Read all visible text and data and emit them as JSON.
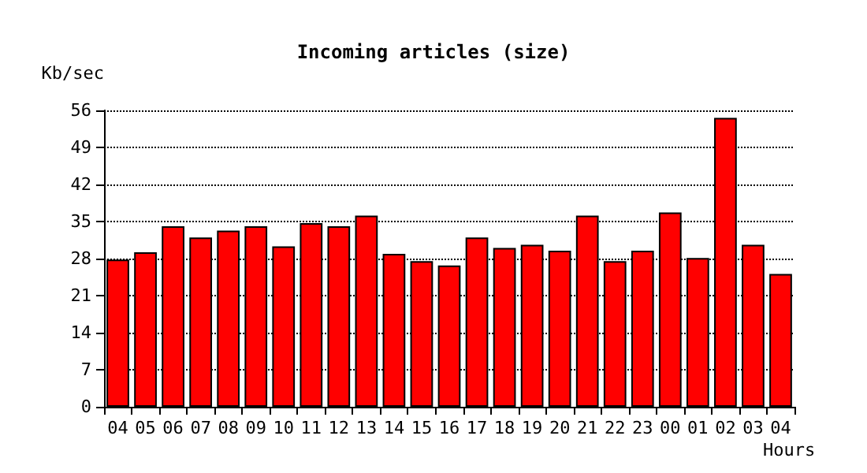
{
  "chart_data": {
    "type": "bar",
    "title": "Incoming articles (size)",
    "ylabel": "Kb/sec",
    "xlabel": "Hours",
    "categories": [
      "04",
      "05",
      "06",
      "07",
      "08",
      "09",
      "10",
      "11",
      "12",
      "13",
      "14",
      "15",
      "16",
      "17",
      "18",
      "19",
      "20",
      "21",
      "22",
      "23",
      "00",
      "01",
      "02",
      "03",
      "04"
    ],
    "values": [
      27.8,
      29.2,
      34.1,
      32.0,
      33.3,
      34.1,
      30.3,
      34.7,
      34.1,
      36.1,
      28.9,
      27.5,
      26.7,
      32.0,
      30.0,
      30.6,
      29.5,
      36.1,
      27.5,
      29.5,
      36.7,
      28.1,
      54.6,
      30.6,
      25.1
    ],
    "color": "#ff0000",
    "ylim": [
      0,
      56
    ],
    "yticks": [
      0,
      7,
      14,
      21,
      28,
      35,
      42,
      49,
      56
    ],
    "grid": "y"
  }
}
